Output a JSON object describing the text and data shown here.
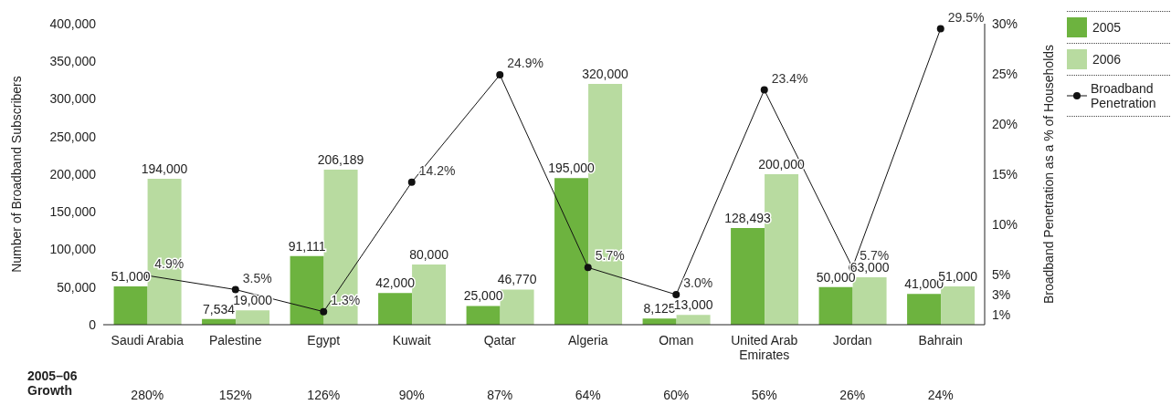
{
  "chart_data": {
    "type": "bar",
    "xlabel": null,
    "ylabel": "Number of Broadband Subscribers",
    "y2label": "Broadband Penetration as a % of Households",
    "categories": [
      "Saudi Arabia",
      "Palestine",
      "Egypt",
      "Kuwait",
      "Qatar",
      "Algeria",
      "Oman",
      "United Arab Emirates",
      "Jordan",
      "Bahrain"
    ],
    "series": [
      {
        "name": "2005",
        "color": "#6db33f",
        "values": [
          51000,
          7534,
          91111,
          42000,
          25000,
          195000,
          8125,
          128493,
          50000,
          41000
        ],
        "value_labels": [
          "51,000",
          "7,534",
          "91,111",
          "42,000",
          "25,000",
          "195,000",
          "8,125",
          "128,493",
          "50,000",
          "41,000"
        ]
      },
      {
        "name": "2006",
        "color": "#b8dba0",
        "values": [
          194000,
          19000,
          206189,
          80000,
          46770,
          320000,
          13000,
          200000,
          63000,
          51000
        ],
        "value_labels": [
          "194,000",
          "19,000",
          "206,189",
          "80,000",
          "46,770",
          "320,000",
          "13,000",
          "200,000",
          "63,000",
          "51,000"
        ]
      },
      {
        "name": "Broadband Penetration",
        "type": "line",
        "axis": "y2",
        "color": "#111111",
        "marker": "circle",
        "values": [
          4.9,
          3.5,
          1.3,
          14.2,
          24.9,
          5.7,
          3.0,
          23.4,
          5.7,
          29.5
        ],
        "value_labels": [
          "4.9%",
          "3.5%",
          "1.3%",
          "14.2%",
          "24.9%",
          "5.7%",
          "3.0%",
          "23.4%",
          "5.7%",
          "29.5%"
        ]
      }
    ],
    "ylim": [
      0,
      400000
    ],
    "yticks": [
      0,
      {
        "value": 50000,
        "label": "50,000"
      },
      {
        "value": 100000,
        "label": "100,000"
      },
      {
        "value": 150000,
        "label": "150,000"
      },
      {
        "value": 200000,
        "label": "200,000"
      },
      {
        "value": 250000,
        "label": "250,000"
      },
      {
        "value": 300000,
        "label": "300,000"
      },
      {
        "value": 350000,
        "label": "350,000"
      },
      {
        "value": 400000,
        "label": "400,000"
      }
    ],
    "y2lim": [
      0,
      30
    ],
    "y2ticks": [
      {
        "value": 1,
        "label": "1%"
      },
      {
        "value": 3,
        "label": "3%"
      },
      {
        "value": 5,
        "label": "5%"
      },
      {
        "value": 10,
        "label": "10%"
      },
      {
        "value": 15,
        "label": "15%"
      },
      {
        "value": 20,
        "label": "20%"
      },
      {
        "value": 25,
        "label": "25%"
      },
      {
        "value": 30,
        "label": "30%"
      }
    ],
    "grid": false,
    "legend": "top right",
    "annotations": [
      "2005–06 Growth",
      "280%",
      "152%",
      "126%",
      "90%",
      "87%",
      "64%",
      "60%",
      "56%",
      "26%",
      "24%"
    ]
  }
}
